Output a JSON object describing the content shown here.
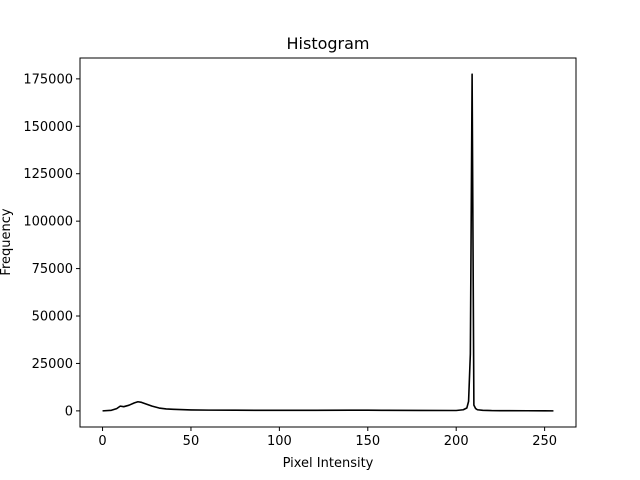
{
  "chart_data": {
    "type": "line",
    "title": "Histogram",
    "xlabel": "Pixel Intensity",
    "ylabel": "Frequency",
    "xlim": [
      -12.75,
      267.75
    ],
    "ylim": [
      -8500,
      186000
    ],
    "x_ticks": [
      0,
      50,
      100,
      150,
      200,
      250
    ],
    "x_tick_labels": [
      "0",
      "50",
      "100",
      "150",
      "200",
      "250"
    ],
    "y_ticks": [
      0,
      25000,
      50000,
      75000,
      100000,
      125000,
      150000,
      175000
    ],
    "y_tick_labels": [
      "0",
      "25000",
      "50000",
      "75000",
      "100000",
      "125000",
      "150000",
      "175000"
    ],
    "grid": false,
    "series": [
      {
        "name": "Frequency",
        "color": "#000000",
        "x": [
          0,
          5,
          8,
          10,
          12,
          15,
          18,
          20,
          22,
          25,
          28,
          32,
          36,
          40,
          50,
          60,
          75,
          90,
          100,
          120,
          140,
          150,
          160,
          180,
          200,
          204,
          206,
          207,
          208,
          209,
          210,
          211,
          212,
          215,
          220,
          225,
          230,
          240,
          250,
          255
        ],
        "values": [
          0,
          300,
          1200,
          2500,
          2200,
          3000,
          4200,
          4800,
          4500,
          3500,
          2500,
          1500,
          1000,
          800,
          500,
          400,
          350,
          300,
          300,
          300,
          350,
          350,
          300,
          250,
          200,
          600,
          1500,
          5000,
          30000,
          177500,
          3000,
          1200,
          600,
          300,
          150,
          100,
          80,
          60,
          50,
          0
        ]
      }
    ]
  }
}
